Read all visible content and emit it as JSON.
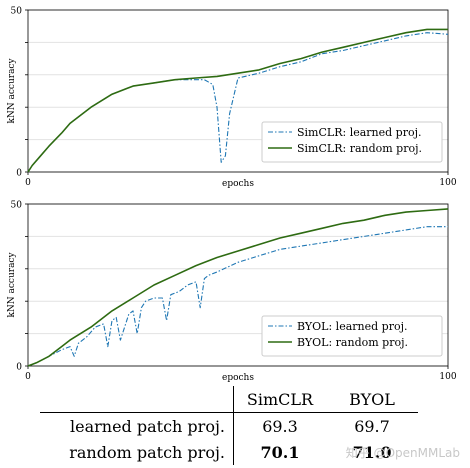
{
  "chart_data": [
    {
      "type": "line",
      "xlabel": "epochs",
      "ylabel": "kNN accuracy",
      "xlim": [
        0,
        100
      ],
      "ylim": [
        0,
        50
      ],
      "xticks": [
        0,
        100
      ],
      "yticks": [
        0,
        10,
        20,
        30,
        40,
        50
      ],
      "legend_position": "bottom-right",
      "series": [
        {
          "name": "SimCLR: learned proj.",
          "color": "#1f77b4",
          "style": "dashdot",
          "x": [
            0,
            1,
            3,
            5,
            8,
            10,
            15,
            20,
            25,
            30,
            35,
            38,
            40,
            42,
            44,
            45,
            46,
            47,
            48,
            50,
            55,
            60,
            65,
            70,
            75,
            80,
            85,
            90,
            95,
            100
          ],
          "y": [
            0,
            2,
            5,
            8,
            12,
            15,
            20,
            24,
            26.5,
            27.5,
            28.5,
            28.5,
            28.5,
            28.5,
            27,
            20,
            3,
            5,
            18,
            29,
            30.5,
            32.5,
            34,
            36.5,
            37.5,
            39,
            40.5,
            42,
            43,
            42.5
          ]
        },
        {
          "name": "SimCLR: random proj.",
          "color": "#2e6b12",
          "style": "solid",
          "x": [
            0,
            1,
            3,
            5,
            8,
            10,
            15,
            20,
            25,
            30,
            35,
            40,
            45,
            50,
            55,
            60,
            65,
            70,
            75,
            80,
            85,
            90,
            95,
            100
          ],
          "y": [
            0,
            2,
            5,
            8,
            12,
            15,
            20,
            24,
            26.5,
            27.5,
            28.5,
            29,
            29.5,
            30.5,
            31.5,
            33.5,
            35,
            37,
            38.5,
            40,
            41.5,
            43,
            44,
            44
          ]
        }
      ]
    },
    {
      "type": "line",
      "xlabel": "epochs",
      "ylabel": "kNN accuracy",
      "xlim": [
        0,
        100
      ],
      "ylim": [
        0,
        50
      ],
      "xticks": [
        0,
        100
      ],
      "yticks": [
        0,
        10,
        20,
        30,
        40,
        50
      ],
      "legend_position": "bottom-right",
      "series": [
        {
          "name": "BYOL: learned proj.",
          "color": "#1f77b4",
          "style": "dashdot",
          "x": [
            0,
            2,
            5,
            8,
            10,
            11,
            12,
            14,
            16,
            18,
            19,
            20,
            21,
            22,
            24,
            25,
            26,
            27,
            28,
            30,
            32,
            33,
            34,
            36,
            38,
            40,
            41,
            42,
            43,
            45,
            50,
            55,
            60,
            65,
            70,
            75,
            80,
            85,
            90,
            95,
            100
          ],
          "y": [
            0,
            1,
            3,
            5,
            6,
            3,
            7,
            9,
            12,
            13,
            6,
            14,
            15,
            8,
            16,
            17,
            10,
            18,
            20,
            21,
            21,
            14,
            22,
            23,
            25,
            26,
            18,
            27,
            28,
            29,
            32,
            34,
            36,
            37,
            38,
            39,
            40,
            41,
            42,
            43,
            43
          ]
        },
        {
          "name": "BYOL: random proj.",
          "color": "#2e6b12",
          "style": "solid",
          "x": [
            0,
            2,
            5,
            8,
            10,
            15,
            20,
            25,
            30,
            35,
            40,
            45,
            50,
            55,
            60,
            65,
            70,
            75,
            80,
            85,
            90,
            95,
            100
          ],
          "y": [
            0,
            1,
            3,
            6,
            8,
            12,
            17,
            21,
            25,
            28,
            31,
            33.5,
            35.5,
            37.5,
            39.5,
            41,
            42.5,
            44,
            45,
            46.5,
            47.5,
            48,
            48.5
          ]
        }
      ]
    }
  ],
  "table": {
    "headers": [
      "SimCLR",
      "BYOL"
    ],
    "rows": [
      {
        "label": "learned patch proj.",
        "values": [
          "69.3",
          "69.7"
        ],
        "bold": false
      },
      {
        "label": "random patch proj.",
        "values": [
          "70.1",
          "71.0"
        ],
        "bold": true
      }
    ]
  },
  "watermark": "知乎 @OpenMMLab"
}
